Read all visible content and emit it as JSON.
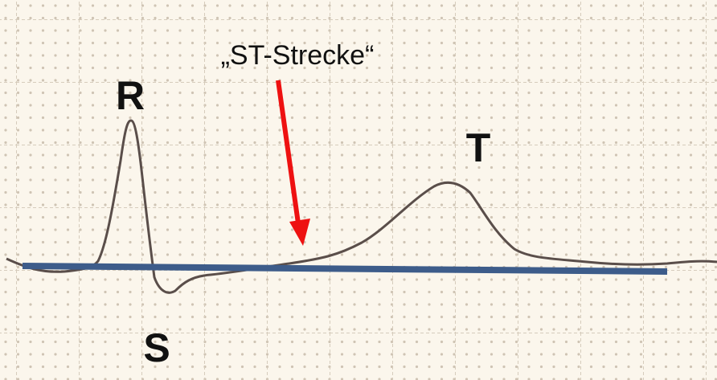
{
  "labels": {
    "r": "R",
    "s": "S",
    "t": "T",
    "st_segment": "„ST-Strecke“"
  }
}
